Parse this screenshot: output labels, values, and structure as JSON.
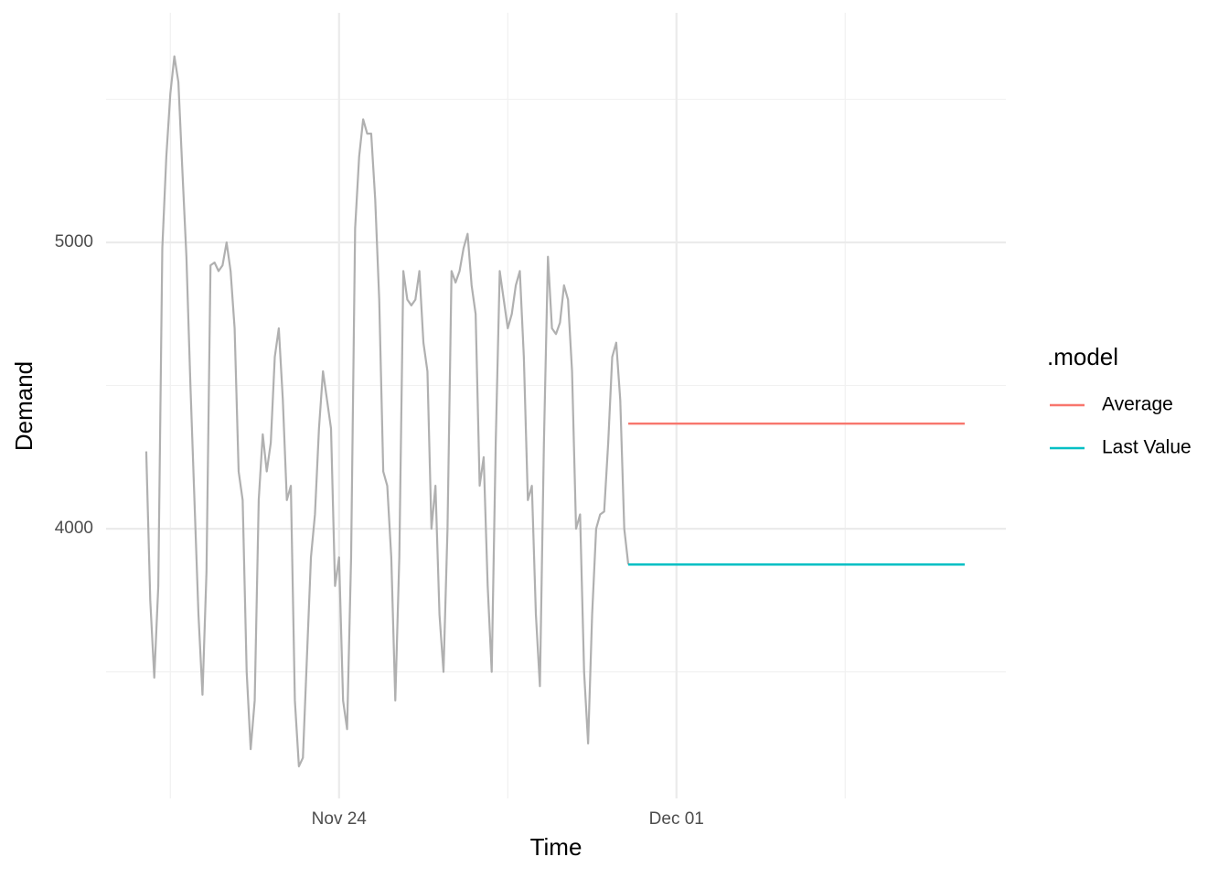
{
  "chart_data": {
    "type": "line",
    "xlabel": "Time",
    "ylabel": "Demand",
    "legend_title": ".model",
    "grid": true,
    "legend_position": "right",
    "xlim": [
      "11-19 04:00",
      "12-07 20:00"
    ],
    "xticks": [
      {
        "value": "11-24 00:00",
        "label": "Nov 24"
      },
      {
        "value": "12-01 00:00",
        "label": "Dec 01"
      }
    ],
    "x_minor_ticks": [
      "11-20 12:00",
      "11-27 12:00",
      "12-04 12:00"
    ],
    "ylim": [
      3058,
      5802
    ],
    "yticks": [
      4000,
      5000
    ],
    "y_minor_ticks": [
      3500,
      4500,
      5500
    ],
    "history": {
      "color": "#b0b0b0",
      "x": [
        "11-20 00:00",
        "11-20 02:00",
        "11-20 04:00",
        "11-20 06:00",
        "11-20 08:00",
        "11-20 10:00",
        "11-20 12:00",
        "11-20 14:00",
        "11-20 16:00",
        "11-20 18:00",
        "11-20 20:00",
        "11-20 22:00",
        "11-21 00:00",
        "11-21 02:00",
        "11-21 04:00",
        "11-21 06:00",
        "11-21 08:00",
        "11-21 10:00",
        "11-21 12:00",
        "11-21 14:00",
        "11-21 16:00",
        "11-21 18:00",
        "11-21 20:00",
        "11-21 22:00",
        "11-22 00:00",
        "11-22 02:00",
        "11-22 04:00",
        "11-22 06:00",
        "11-22 08:00",
        "11-22 10:00",
        "11-22 12:00",
        "11-22 14:00",
        "11-22 16:00",
        "11-22 18:00",
        "11-22 20:00",
        "11-22 22:00",
        "11-23 00:00",
        "11-23 02:00",
        "11-23 04:00",
        "11-23 06:00",
        "11-23 08:00",
        "11-23 10:00",
        "11-23 12:00",
        "11-23 14:00",
        "11-23 16:00",
        "11-23 18:00",
        "11-23 20:00",
        "11-23 22:00",
        "11-24 00:00",
        "11-24 02:00",
        "11-24 04:00",
        "11-24 06:00",
        "11-24 08:00",
        "11-24 10:00",
        "11-24 12:00",
        "11-24 14:00",
        "11-24 16:00",
        "11-24 18:00",
        "11-24 20:00",
        "11-24 22:00",
        "11-25 00:00",
        "11-25 02:00",
        "11-25 04:00",
        "11-25 06:00",
        "11-25 08:00",
        "11-25 10:00",
        "11-25 12:00",
        "11-25 14:00",
        "11-25 16:00",
        "11-25 18:00",
        "11-25 20:00",
        "11-25 22:00",
        "11-26 00:00",
        "11-26 02:00",
        "11-26 04:00",
        "11-26 06:00",
        "11-26 08:00",
        "11-26 10:00",
        "11-26 12:00",
        "11-26 14:00",
        "11-26 16:00",
        "11-26 18:00",
        "11-26 20:00",
        "11-26 22:00",
        "11-27 00:00",
        "11-27 02:00",
        "11-27 04:00",
        "11-27 06:00",
        "11-27 08:00",
        "11-27 10:00",
        "11-27 12:00",
        "11-27 14:00",
        "11-27 16:00",
        "11-27 18:00",
        "11-27 20:00",
        "11-27 22:00",
        "11-28 00:00",
        "11-28 02:00",
        "11-28 04:00",
        "11-28 06:00",
        "11-28 08:00",
        "11-28 10:00",
        "11-28 12:00",
        "11-28 14:00",
        "11-28 16:00",
        "11-28 18:00",
        "11-28 20:00",
        "11-28 22:00",
        "11-29 00:00",
        "11-29 02:00",
        "11-29 04:00",
        "11-29 06:00",
        "11-29 08:00",
        "11-29 10:00",
        "11-29 12:00",
        "11-29 14:00",
        "11-29 16:00",
        "11-29 18:00",
        "11-29 20:00",
        "11-29 22:00",
        "11-30 00:00"
      ],
      "values": [
        4270,
        3750,
        3480,
        3800,
        4980,
        5300,
        5520,
        5650,
        5560,
        5250,
        4950,
        4500,
        4100,
        3700,
        3420,
        3850,
        4920,
        4930,
        4900,
        4920,
        5000,
        4900,
        4700,
        4200,
        4100,
        3500,
        3230,
        3400,
        4100,
        4330,
        4200,
        4300,
        4600,
        4700,
        4450,
        4100,
        4150,
        3400,
        3170,
        3200,
        3550,
        3900,
        4050,
        4350,
        4550,
        4450,
        4350,
        3800,
        3900,
        3400,
        3300,
        3900,
        5050,
        5300,
        5430,
        5380,
        5380,
        5150,
        4800,
        4200,
        4150,
        3900,
        3400,
        3900,
        4900,
        4800,
        4780,
        4800,
        4900,
        4650,
        4550,
        4000,
        4150,
        3700,
        3500,
        4000,
        4900,
        4860,
        4900,
        4980,
        5030,
        4850,
        4750,
        4150,
        4250,
        3800,
        3500,
        4300,
        4900,
        4800,
        4700,
        4750,
        4850,
        4900,
        4600,
        4100,
        4150,
        3700,
        3450,
        4300,
        4950,
        4700,
        4680,
        4720,
        4850,
        4800,
        4550,
        4000,
        4050,
        3500,
        3250,
        3700,
        4000,
        4050,
        4060,
        4300,
        4600,
        4650,
        4450,
        4000,
        3875
      ]
    },
    "series": [
      {
        "name": "Average",
        "color": "#F8766D",
        "x": [
          "11-30 00:00",
          "12-06 23:30"
        ],
        "values": [
          4367,
          4367
        ]
      },
      {
        "name": "Last Value",
        "color": "#00BFC4",
        "x": [
          "11-30 00:00",
          "12-06 23:30"
        ],
        "values": [
          3875,
          3875
        ]
      }
    ]
  }
}
